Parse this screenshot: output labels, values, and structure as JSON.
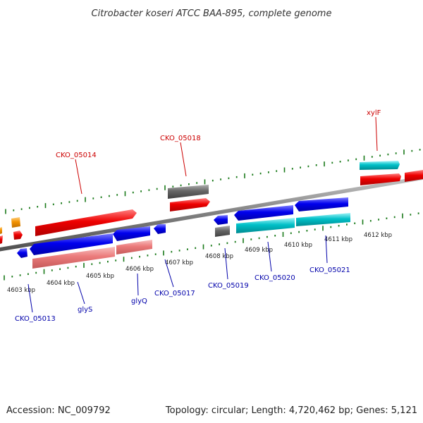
{
  "title": "Citrobacter koseri ATCC BAA-895, complete genome",
  "footer": {
    "accession": "Accession: NC_009792",
    "topology": "Topology: circular; Length: 4,720,462 bp; Genes: 5,121"
  },
  "colors": {
    "cds_forward": "#ee0000",
    "cds_reverse": "#0000ee",
    "rrna": "#eb7a7a",
    "trna": "#00c0c8",
    "pseudo": "#666666",
    "misc": "#f39200",
    "tick": "#1a7a1a",
    "backbone": "#808080",
    "label_forward": "#cc0000",
    "label_reverse": "#0000aa"
  },
  "scale_labels": [
    "4603 kbp",
    "4604 kbp",
    "4605 kbp",
    "4606 kbp",
    "4607 kbp",
    "4608 kbp",
    "4609 kbp",
    "4610 kbp",
    "4611 kbp",
    "4612 kbp"
  ],
  "gene_labels_forward": [
    "CKO_05014",
    "CKO_05018",
    "xylF"
  ],
  "gene_labels_reverse": [
    "CKO_05013",
    "glyS",
    "glyQ",
    "CKO_05017",
    "CKO_05019",
    "CKO_05020",
    "CKO_05021"
  ]
}
